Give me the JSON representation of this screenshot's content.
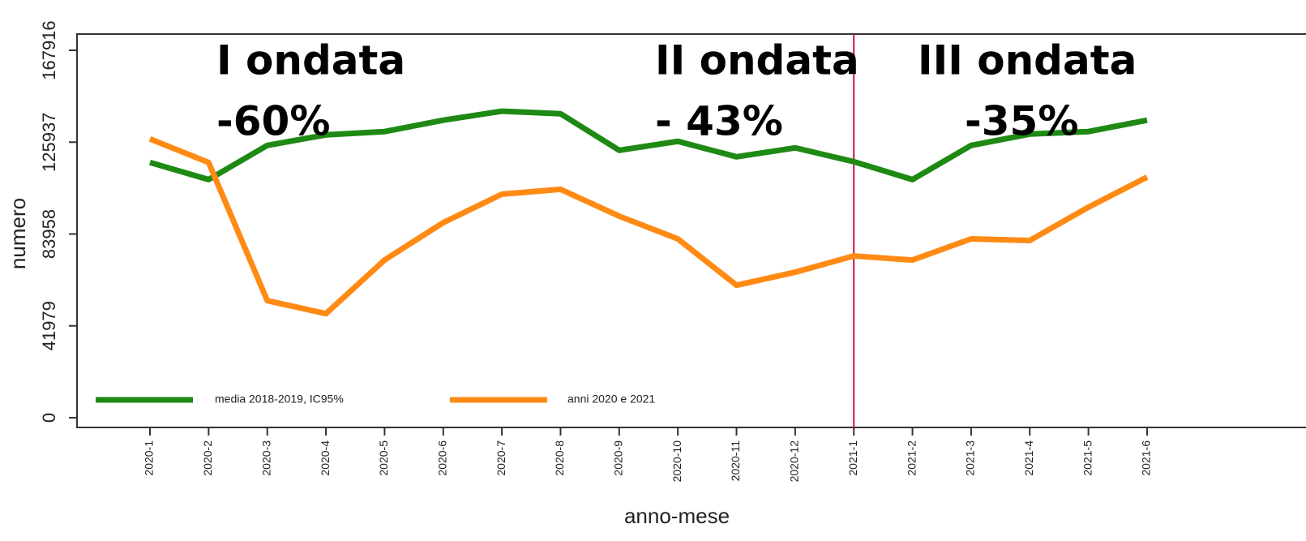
{
  "chart_data": {
    "type": "line",
    "y_label": "numero",
    "x_label": "anno-mese",
    "categories": [
      "2020-1",
      "2020-2",
      "2020-3",
      "2020-4",
      "2020-5",
      "2020-6",
      "2020-7",
      "2020-8",
      "2020-9",
      "2020-10",
      "2020-11",
      "2020-12",
      "2021-1",
      "2021-2",
      "2021-3",
      "2021-4",
      "2021-5",
      "2021-6"
    ],
    "series": [
      {
        "name": "media 2018-2019, IC95%",
        "color": "#1e8a14",
        "values": [
          116650,
          108850,
          124450,
          129280,
          130770,
          135970,
          140100,
          138940,
          122220,
          126310,
          119250,
          123340,
          117020,
          108850,
          124450,
          129650,
          130770,
          135970
        ]
      },
      {
        "name": "anni 2020 e 2021",
        "color": "#ff8a14",
        "values": [
          127420,
          116650,
          53500,
          47550,
          72070,
          89160,
          102160,
          104390,
          92130,
          81730,
          60550,
          66500,
          73930,
          72070,
          81730,
          80990,
          96220,
          109970
        ]
      }
    ],
    "ylim": [
      -4458,
      175346
    ],
    "yticks": [
      0,
      41979,
      83958,
      125937,
      167916
    ],
    "vline": {
      "x": "2021-1",
      "color": "#c8174a"
    },
    "legend": "bottom-left",
    "annotations": [
      "I ondata",
      "-60%",
      "II ondata",
      "- 43%",
      "III ondata",
      "-35%"
    ]
  }
}
